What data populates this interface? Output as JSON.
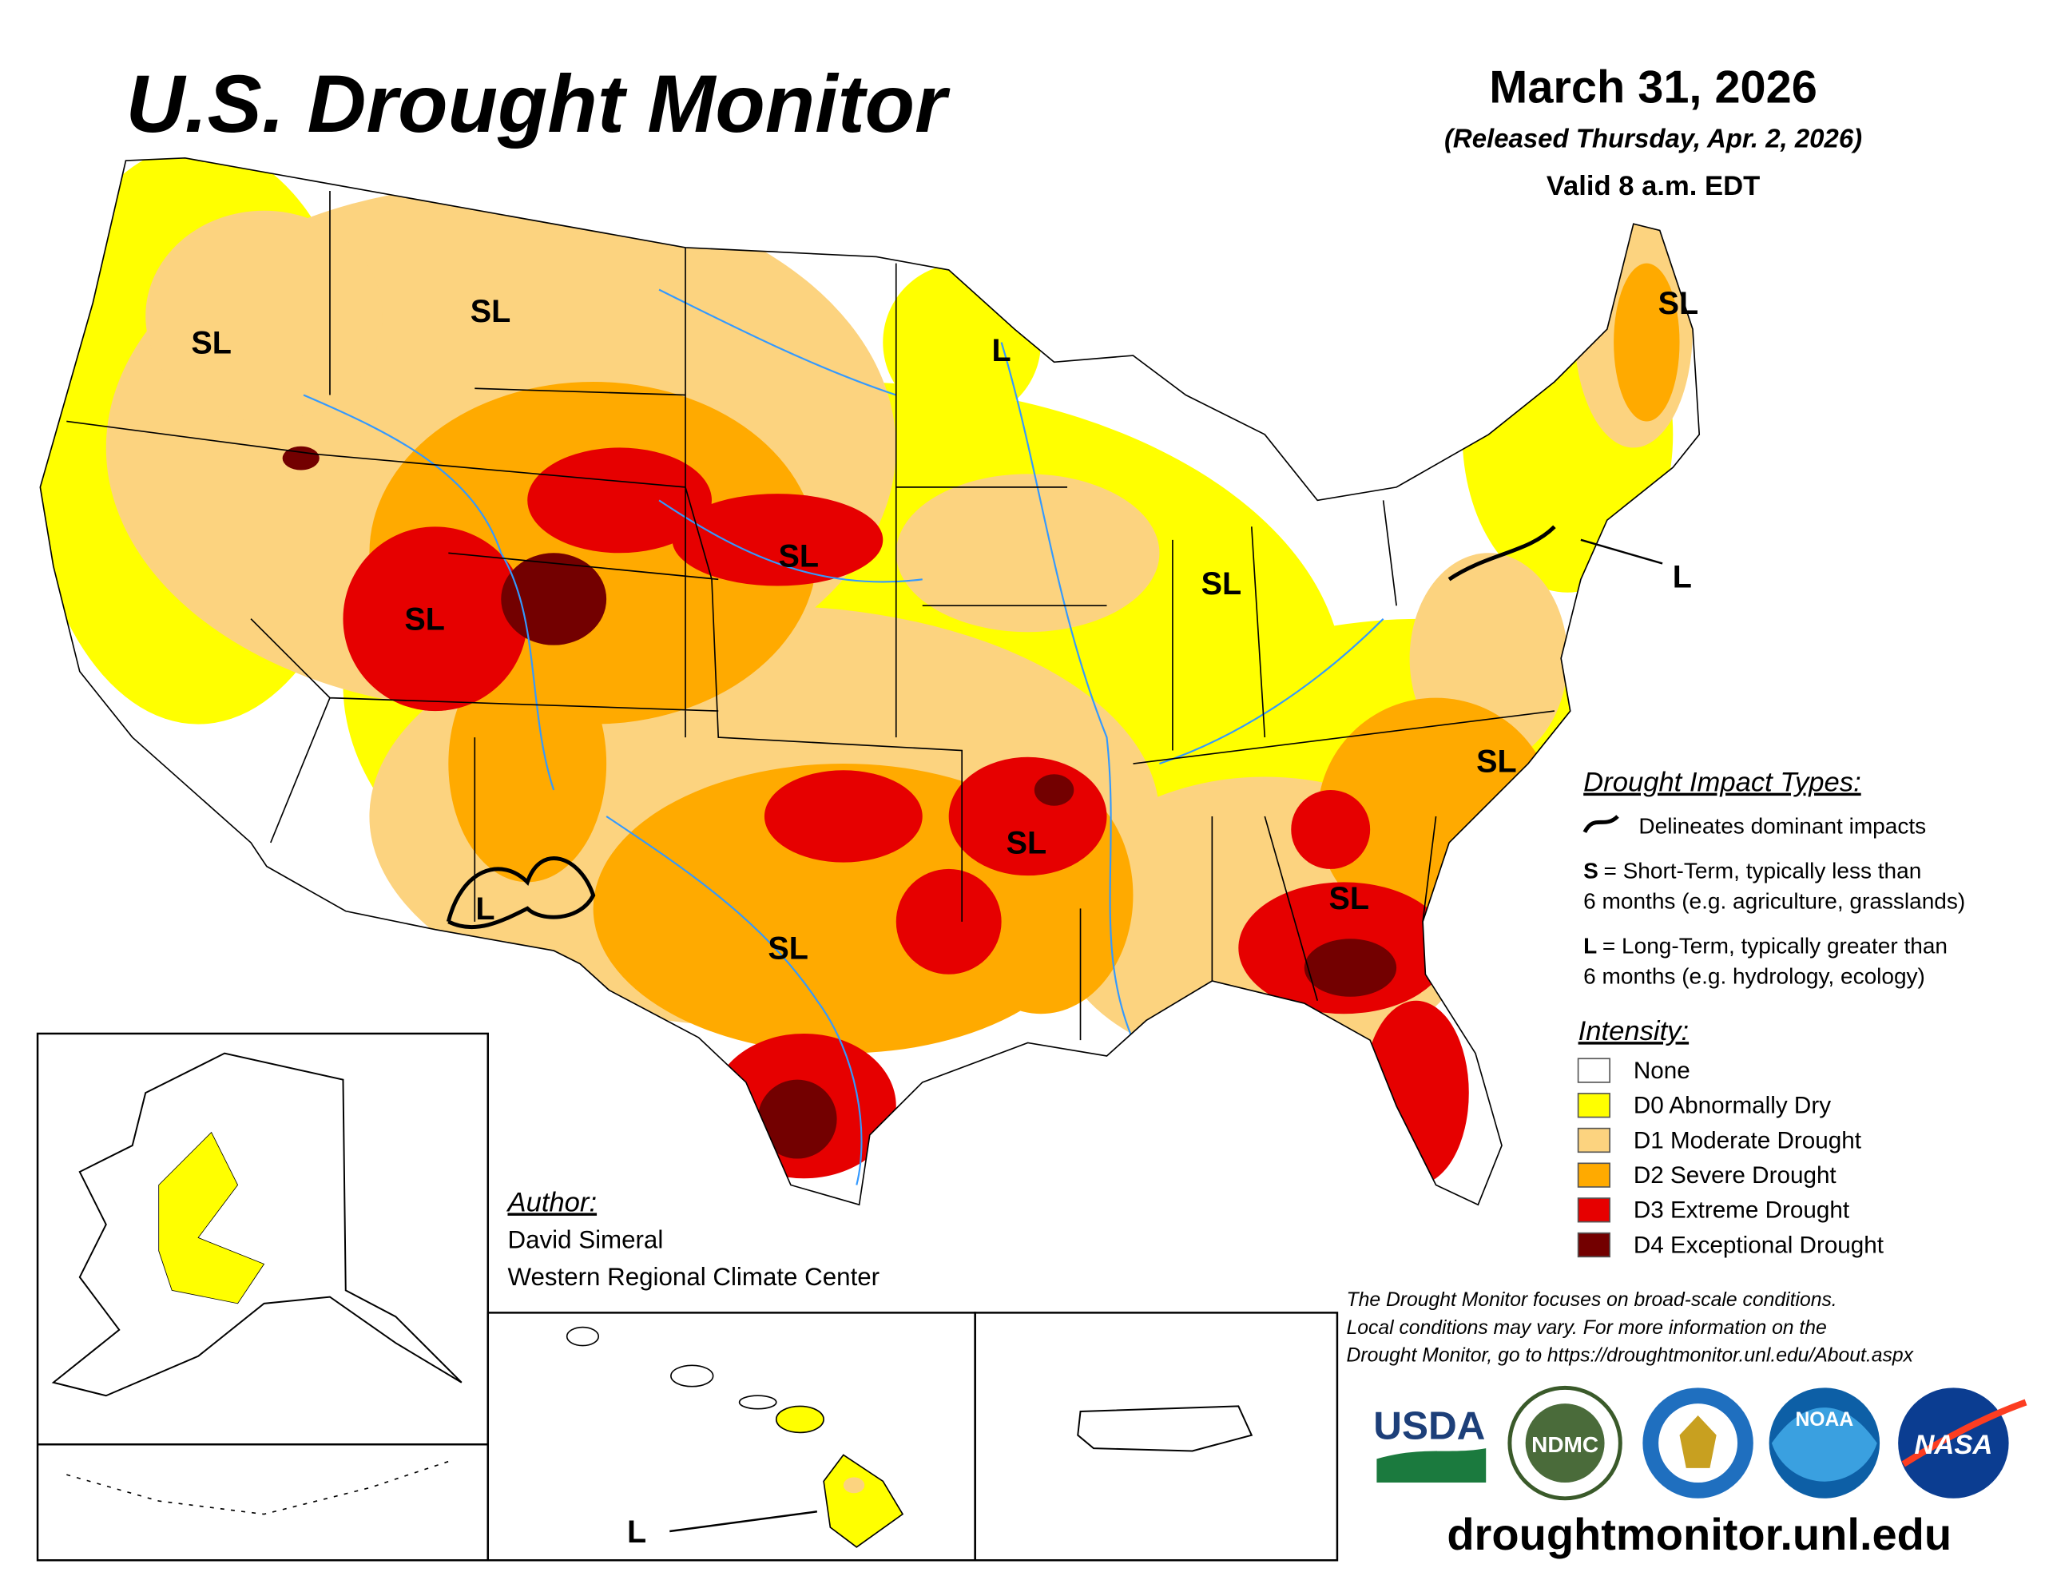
{
  "header": {
    "title": "U.S. Drought Monitor",
    "date": "March 31, 2026",
    "released": "(Released Thursday, Apr. 2, 2026)",
    "valid": "Valid 8 a.m. EDT"
  },
  "map_labels": [
    "SL",
    "SL",
    "L",
    "SL",
    "SL",
    "SL",
    "SL",
    "L",
    "SL",
    "SL",
    "SL",
    "SL",
    "L",
    "L"
  ],
  "impact_types": {
    "title": "Drought Impact Types:",
    "delineates": "Delineates dominant impacts",
    "short": {
      "key": "S",
      "lines": [
        "= Short-Term, typically less than",
        "6 months (e.g. agriculture, grasslands)"
      ]
    },
    "long": {
      "key": "L",
      "lines": [
        "= Long-Term, typically greater than",
        "6 months (e.g. hydrology, ecology)"
      ]
    }
  },
  "intensity": {
    "title": "Intensity:",
    "levels": [
      {
        "label": "None",
        "color": "#ffffff"
      },
      {
        "label": "D0 Abnormally Dry",
        "color": "#ffff00"
      },
      {
        "label": "D1 Moderate Drought",
        "color": "#fcd37f"
      },
      {
        "label": "D2 Severe Drought",
        "color": "#ffaa00"
      },
      {
        "label": "D3 Extreme Drought",
        "color": "#e60000"
      },
      {
        "label": "D4 Exceptional Drought",
        "color": "#730000"
      }
    ]
  },
  "author": {
    "heading": "Author:",
    "name": "David Simeral",
    "org": "Western Regional Climate Center"
  },
  "disclaimer": [
    "The Drought Monitor focuses on broad-scale conditions.",
    "Local conditions may vary. For more information on the",
    "Drought Monitor, go to https://droughtmonitor.unl.edu/About.aspx"
  ],
  "logos": [
    "USDA",
    "NDMC",
    "NOAA",
    "NASA"
  ],
  "url": "droughtmonitor.unl.edu"
}
